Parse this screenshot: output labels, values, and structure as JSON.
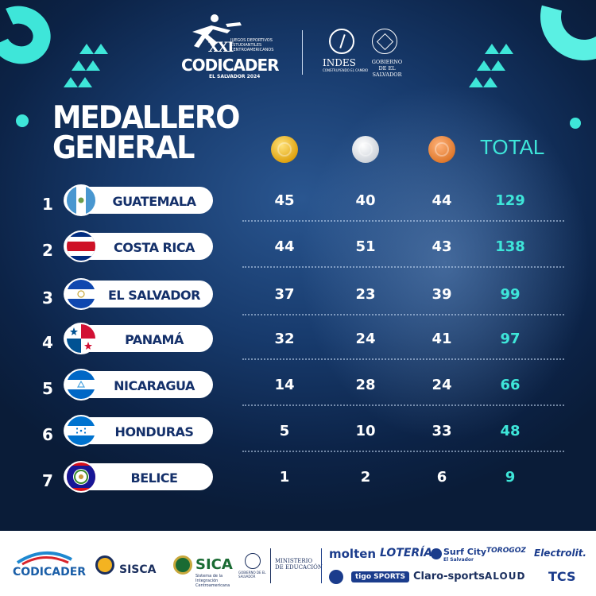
{
  "header": {
    "logo_xxi": "XXI",
    "logo_small": "JUEGOS DEPORTIVOS ESTUDIANTILES CENTROAMERICANOS",
    "logo_name": "CODICADER",
    "logo_sub": "EL SALVADOR 2024",
    "indes": "INDES",
    "indes_sub": "CONSTRUYENDO EL CAMBIO",
    "gobierno": "GOBIERNO DE EL SALVADOR"
  },
  "title_line1": "MEDALLERO",
  "title_line2": "GENERAL",
  "columns": {
    "gold_icon": "gold-medal-icon",
    "silver_icon": "silver-medal-icon",
    "bronze_icon": "bronze-medal-icon",
    "total": "TOTAL"
  },
  "colors": {
    "accent": "#3ee6d9",
    "background": "#173a6c",
    "pill": "#ffffff",
    "name_text": "#14306a"
  },
  "rows": [
    {
      "rank": "1",
      "country": "GUATEMALA",
      "gold": "45",
      "silver": "40",
      "bronze": "44",
      "total": "129"
    },
    {
      "rank": "2",
      "country": "COSTA RICA",
      "gold": "44",
      "silver": "51",
      "bronze": "43",
      "total": "138"
    },
    {
      "rank": "3",
      "country": "EL SALVADOR",
      "gold": "37",
      "silver": "23",
      "bronze": "39",
      "total": "99"
    },
    {
      "rank": "4",
      "country": "PANAMÁ",
      "gold": "32",
      "silver": "24",
      "bronze": "41",
      "total": "97"
    },
    {
      "rank": "5",
      "country": "NICARAGUA",
      "gold": "14",
      "silver": "28",
      "bronze": "24",
      "total": "66"
    },
    {
      "rank": "6",
      "country": "HONDURAS",
      "gold": "5",
      "silver": "10",
      "bronze": "33",
      "total": "48"
    },
    {
      "rank": "7",
      "country": "BELICE",
      "gold": "1",
      "silver": "2",
      "bronze": "6",
      "total": "9"
    }
  ],
  "footer": {
    "codicader": "CODICADER",
    "sisca": "SISCA",
    "sica": "SICA",
    "sica_sub": "Sistema de la Integración Centroamericana",
    "gob_small": "GOBIERNO DE EL SALVADOR",
    "ministerio": "MINISTERIO DE EDUCACIÓN",
    "molten": "molten",
    "loteria": "LOTERÍA",
    "surfcity": "Surf City",
    "surfcity_sub": "El Salvador",
    "torogoz": "TOROGOZ",
    "electrolit": "Electrolit.",
    "tigo": "tigo SPORTS",
    "claro": "Claro-sports",
    "aloud": "ALOUD",
    "tcs": "TCS"
  }
}
